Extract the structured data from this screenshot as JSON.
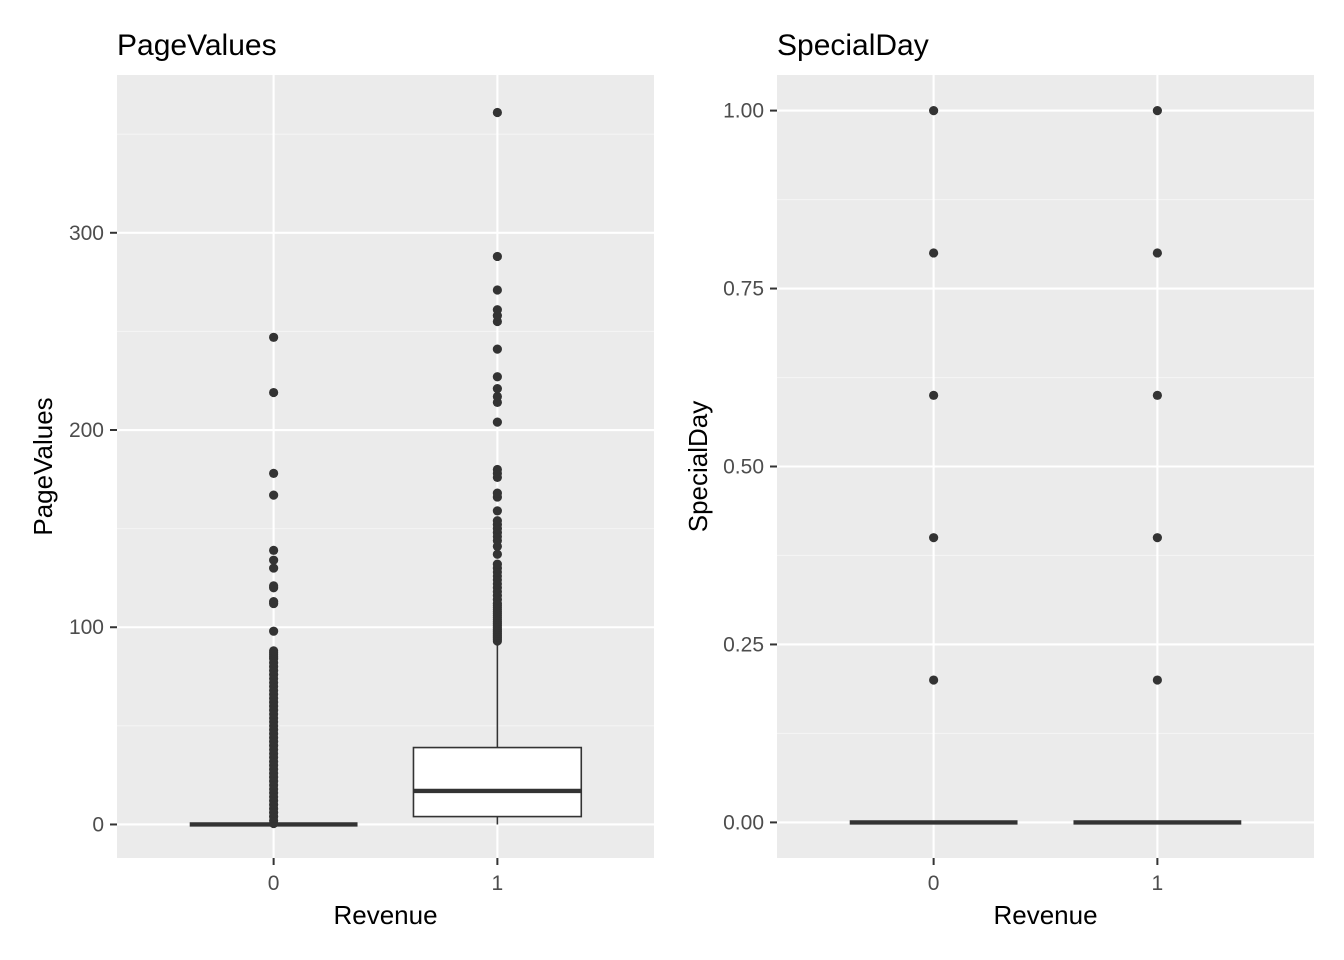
{
  "chart_data": [
    {
      "type": "box",
      "title": "PageValues",
      "xlabel": "Revenue",
      "ylabel": "PageValues",
      "categories": [
        "0",
        "1"
      ],
      "ylim": [
        -17,
        380
      ],
      "yticks": [
        0,
        100,
        200,
        300
      ],
      "ytick_labels": [
        "0",
        "100",
        "200",
        "300"
      ],
      "grid": true,
      "boxes": [
        {
          "category": "0",
          "q1": 0,
          "median": 0,
          "q3": 0,
          "whisker_low": 0,
          "whisker_high": 0,
          "outliers": [
            0.5,
            2,
            4,
            6,
            8,
            10,
            12,
            14,
            16,
            18,
            20,
            22,
            24,
            26,
            28,
            30,
            32,
            34,
            36,
            38,
            40,
            42,
            44,
            46,
            48,
            50,
            52,
            54,
            56,
            58,
            60,
            62,
            64,
            66,
            68,
            70,
            72,
            74,
            76,
            78,
            80,
            82,
            84,
            85,
            86,
            87,
            88,
            98,
            112,
            113,
            120,
            121,
            130,
            134,
            139,
            167,
            178,
            219,
            247
          ]
        },
        {
          "category": "1",
          "q1": 4,
          "median": 17,
          "q3": 39,
          "whisker_low": 0,
          "whisker_high": 92,
          "outliers": [
            93,
            94,
            95,
            96,
            97,
            98,
            99,
            100,
            101,
            102,
            103,
            104,
            105,
            106,
            107,
            108,
            109,
            110,
            111,
            112,
            114,
            116,
            118,
            120,
            122,
            124,
            126,
            128,
            130,
            132,
            137,
            141,
            144,
            146,
            148,
            150,
            152,
            154,
            159,
            166,
            168,
            176,
            178,
            180,
            204,
            214,
            217,
            221,
            227,
            241,
            255,
            258,
            261,
            271,
            288,
            361
          ]
        }
      ]
    },
    {
      "type": "box",
      "title": "SpecialDay",
      "xlabel": "Revenue",
      "ylabel": "SpecialDay",
      "categories": [
        "0",
        "1"
      ],
      "ylim": [
        -0.05,
        1.05
      ],
      "yticks": [
        0,
        0.25,
        0.5,
        0.75,
        1.0
      ],
      "ytick_labels": [
        "0.00",
        "0.25",
        "0.50",
        "0.75",
        "1.00"
      ],
      "grid": true,
      "boxes": [
        {
          "category": "0",
          "q1": 0,
          "median": 0,
          "q3": 0,
          "whisker_low": 0,
          "whisker_high": 0,
          "outliers": [
            0.2,
            0.4,
            0.6,
            0.8,
            1.0
          ]
        },
        {
          "category": "1",
          "q1": 0,
          "median": 0,
          "q3": 0,
          "whisker_low": 0,
          "whisker_high": 0,
          "outliers": [
            0.2,
            0.4,
            0.6,
            0.8,
            1.0
          ]
        }
      ]
    }
  ],
  "colors": {
    "panel_background": "#ebebeb",
    "grid_major": "#ffffff",
    "grid_minor": "#f4f4f4",
    "box_line": "#333333",
    "box_fill": "#ffffff",
    "outlier": "#333333",
    "tick_label": "#4d4d4d",
    "text": "#000000"
  }
}
